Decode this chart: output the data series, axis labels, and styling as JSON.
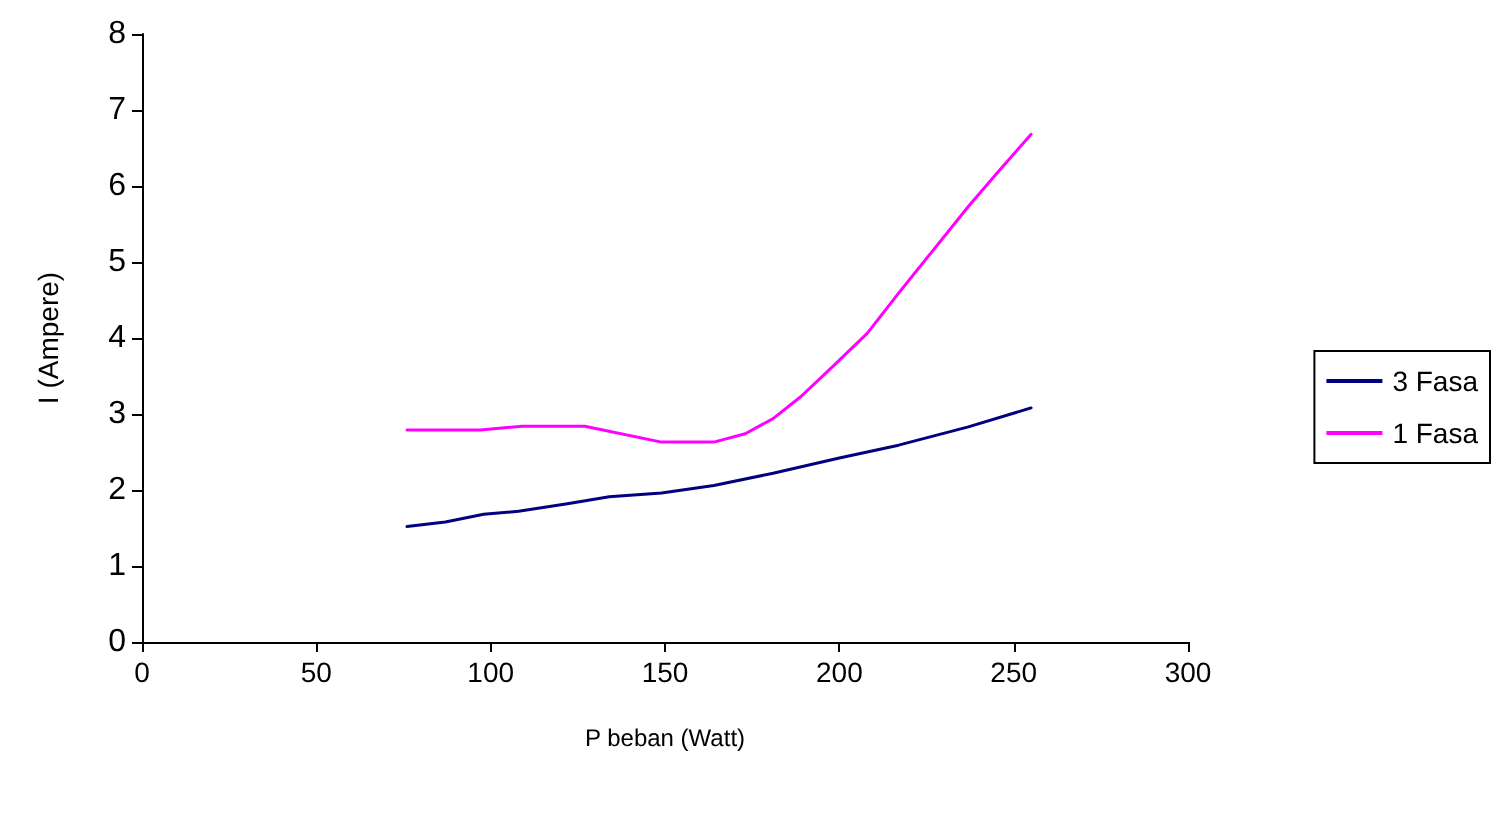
{
  "chart_data": {
    "type": "line",
    "xlabel": "P beban (Watt)",
    "ylabel": "I (Ampere)",
    "xlim": [
      0,
      300
    ],
    "xticks": [
      0,
      50,
      100,
      150,
      200,
      250,
      300
    ],
    "ylim": [
      0,
      8
    ],
    "yticks": [
      0,
      1,
      2,
      3,
      4,
      5,
      6,
      7,
      8
    ],
    "grid": false,
    "legend": "right",
    "marker": "none",
    "line_style": "solid",
    "series": [
      {
        "name": "3 Fasa",
        "color": "#000080",
        "x": [
          76,
          87,
          98,
          108,
          122,
          134,
          149,
          164,
          181,
          200,
          217,
          237,
          255
        ],
        "values": [
          1.52,
          1.58,
          1.68,
          1.72,
          1.82,
          1.91,
          1.96,
          2.06,
          2.22,
          2.42,
          2.59,
          2.83,
          3.08
        ]
      },
      {
        "name": "1 Fasa",
        "color": "#ff00ff",
        "x": [
          76,
          97,
          109,
          127,
          149,
          164,
          173,
          181,
          189,
          198,
          208,
          217,
          227,
          237,
          246,
          255
        ],
        "values": [
          2.79,
          2.79,
          2.84,
          2.84,
          2.63,
          2.63,
          2.74,
          2.94,
          3.23,
          3.62,
          4.06,
          4.59,
          5.16,
          5.73,
          6.21,
          6.68
        ]
      }
    ]
  }
}
